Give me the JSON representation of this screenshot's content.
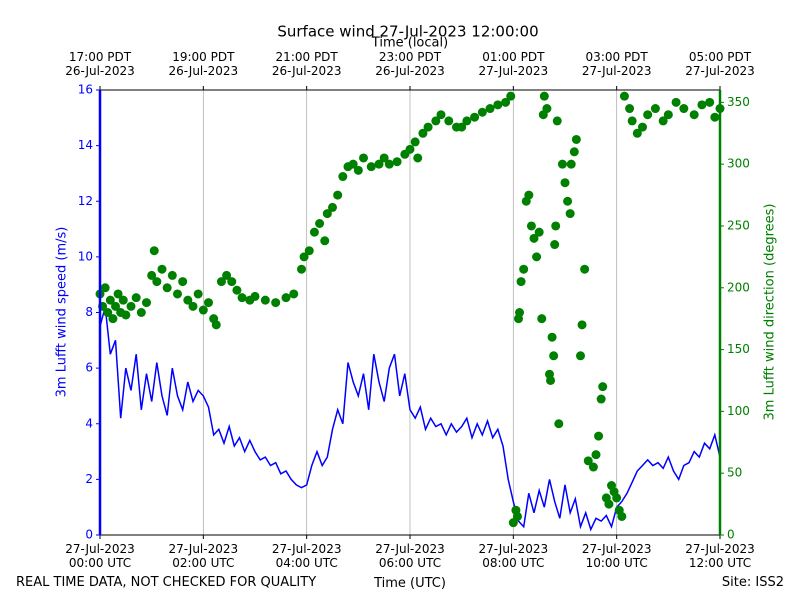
{
  "chart_data": {
    "type": "line",
    "title": "Surface wind 27-Jul-2023 12:00:00",
    "top_xlabel": "Time (local)",
    "xlabel": "Time (UTC)",
    "ylabel": "3m Lufft wind speed (m/s)",
    "y2label": "3m Lufft wind direction (degrees)",
    "footer_left": "REAL TIME DATA, NOT CHECKED FOR QUALITY",
    "footer_right": "Site: ISS2",
    "grid": true,
    "xlim": [
      0,
      12
    ],
    "xticks": [
      {
        "value": 0,
        "label": "27-Jul-2023\n00:00 UTC"
      },
      {
        "value": 2,
        "label": "27-Jul-2023\n02:00 UTC"
      },
      {
        "value": 4,
        "label": "27-Jul-2023\n04:00 UTC"
      },
      {
        "value": 6,
        "label": "27-Jul-2023\n06:00 UTC"
      },
      {
        "value": 8,
        "label": "27-Jul-2023\n08:00 UTC"
      },
      {
        "value": 10,
        "label": "27-Jul-2023\n10:00 UTC"
      },
      {
        "value": 12,
        "label": "27-Jul-2023\n12:00 UTC"
      }
    ],
    "top_xticks": [
      {
        "value": 0,
        "label": "17:00 PDT\n26-Jul-2023"
      },
      {
        "value": 2,
        "label": "19:00 PDT\n26-Jul-2023"
      },
      {
        "value": 4,
        "label": "21:00 PDT\n26-Jul-2023"
      },
      {
        "value": 6,
        "label": "23:00 PDT\n26-Jul-2023"
      },
      {
        "value": 8,
        "label": "01:00 PDT\n27-Jul-2023"
      },
      {
        "value": 10,
        "label": "03:00 PDT\n27-Jul-2023"
      },
      {
        "value": 12,
        "label": "05:00 PDT\n27-Jul-2023"
      }
    ],
    "ylim": [
      0,
      16
    ],
    "yticks": [
      0,
      2,
      4,
      6,
      8,
      10,
      12,
      14,
      16
    ],
    "y2lim": [
      0,
      360
    ],
    "y2ticks": [
      0,
      50,
      100,
      150,
      200,
      250,
      300,
      350
    ],
    "series": [
      {
        "type": "line",
        "axis": "y",
        "color": "#0000ff",
        "x": [
          0,
          0.1,
          0.2,
          0.3,
          0.4,
          0.5,
          0.6,
          0.7,
          0.8,
          0.9,
          1,
          1.1,
          1.2,
          1.3,
          1.4,
          1.5,
          1.6,
          1.7,
          1.8,
          1.9,
          2,
          2.1,
          2.2,
          2.3,
          2.4,
          2.5,
          2.6,
          2.7,
          2.8,
          2.9,
          3,
          3.1,
          3.2,
          3.3,
          3.4,
          3.5,
          3.6,
          3.7,
          3.8,
          3.9,
          4,
          4.1,
          4.2,
          4.3,
          4.4,
          4.5,
          4.6,
          4.7,
          4.8,
          4.9,
          5,
          5.1,
          5.2,
          5.3,
          5.4,
          5.5,
          5.6,
          5.7,
          5.8,
          5.9,
          6,
          6.1,
          6.2,
          6.3,
          6.4,
          6.5,
          6.6,
          6.7,
          6.8,
          6.9,
          7,
          7.1,
          7.2,
          7.3,
          7.4,
          7.5,
          7.6,
          7.7,
          7.8,
          7.9,
          8,
          8.1,
          8.2,
          8.3,
          8.4,
          8.5,
          8.6,
          8.7,
          8.8,
          8.9,
          9,
          9.1,
          9.2,
          9.3,
          9.4,
          9.5,
          9.6,
          9.7,
          9.8,
          9.9,
          10,
          10.1,
          10.2,
          10.3,
          10.4,
          10.5,
          10.6,
          10.7,
          10.8,
          10.9,
          11,
          11.1,
          11.2,
          11.3,
          11.4,
          11.5,
          11.6,
          11.7,
          11.8,
          11.9,
          12
        ],
        "values": [
          7.5,
          8.2,
          6.5,
          7.0,
          4.2,
          6.0,
          5.2,
          6.5,
          4.5,
          5.8,
          4.8,
          6.2,
          5.0,
          4.3,
          6.0,
          5.0,
          4.5,
          5.5,
          4.8,
          5.2,
          5.0,
          4.6,
          3.6,
          3.8,
          3.3,
          3.9,
          3.2,
          3.5,
          3.0,
          3.4,
          3.0,
          2.7,
          2.8,
          2.5,
          2.6,
          2.2,
          2.3,
          2.0,
          1.8,
          1.7,
          1.8,
          2.5,
          3.0,
          2.5,
          2.8,
          3.8,
          4.5,
          4.0,
          6.2,
          5.5,
          5.0,
          5.8,
          4.5,
          6.5,
          5.5,
          4.8,
          6.0,
          6.5,
          5.0,
          5.8,
          4.5,
          4.2,
          4.6,
          3.8,
          4.2,
          3.9,
          4.0,
          3.6,
          4.0,
          3.7,
          3.9,
          4.2,
          3.5,
          4.0,
          3.6,
          4.1,
          3.5,
          3.8,
          3.2,
          2.0,
          1.2,
          0.5,
          0.3,
          1.5,
          0.8,
          1.6,
          1.0,
          2.0,
          1.2,
          0.6,
          1.8,
          0.8,
          1.3,
          0.3,
          0.8,
          0.2,
          0.6,
          0.5,
          0.7,
          0.3,
          1.0,
          1.2,
          1.5,
          1.9,
          2.3,
          2.5,
          2.7,
          2.5,
          2.6,
          2.4,
          2.8,
          2.3,
          2.0,
          2.5,
          2.6,
          3.0,
          2.8,
          3.3,
          3.1,
          3.6,
          2.8
        ]
      },
      {
        "type": "scatter",
        "axis": "y2",
        "color": "#008000",
        "x": [
          0,
          0.05,
          0.1,
          0.15,
          0.2,
          0.25,
          0.3,
          0.35,
          0.4,
          0.45,
          0.5,
          0.6,
          0.7,
          0.8,
          0.9,
          1.0,
          1.05,
          1.1,
          1.2,
          1.3,
          1.4,
          1.5,
          1.6,
          1.7,
          1.8,
          1.9,
          2.0,
          2.1,
          2.2,
          2.25,
          2.35,
          2.45,
          2.55,
          2.65,
          2.75,
          2.9,
          3.0,
          3.2,
          3.4,
          3.6,
          3.75,
          3.9,
          3.95,
          4.05,
          4.15,
          4.25,
          4.35,
          4.4,
          4.5,
          4.6,
          4.7,
          4.8,
          4.9,
          5.0,
          5.1,
          5.25,
          5.4,
          5.5,
          5.6,
          5.75,
          5.9,
          6.0,
          6.1,
          6.15,
          6.25,
          6.35,
          6.5,
          6.6,
          6.75,
          6.9,
          7.0,
          7.1,
          7.25,
          7.4,
          7.55,
          7.7,
          7.85,
          7.95,
          8.0,
          8.05,
          8.08,
          8.1,
          8.12,
          8.15,
          8.2,
          8.25,
          8.3,
          8.35,
          8.4,
          8.45,
          8.5,
          8.55,
          8.58,
          8.6,
          8.65,
          8.7,
          8.72,
          8.75,
          8.78,
          8.8,
          8.82,
          8.85,
          8.88,
          8.95,
          9.0,
          9.05,
          9.1,
          9.12,
          9.18,
          9.22,
          9.3,
          9.33,
          9.38,
          9.45,
          9.55,
          9.6,
          9.65,
          9.7,
          9.73,
          9.8,
          9.85,
          9.9,
          9.95,
          10.0,
          10.05,
          10.1,
          10.15,
          10.25,
          10.3,
          10.4,
          10.5,
          10.6,
          10.75,
          10.9,
          11.0,
          11.15,
          11.3,
          11.5,
          11.65,
          11.8,
          11.9,
          12.0
        ],
        "values": [
          195,
          185,
          200,
          180,
          190,
          175,
          185,
          195,
          180,
          190,
          178,
          185,
          192,
          180,
          188,
          210,
          230,
          205,
          215,
          200,
          210,
          195,
          205,
          190,
          185,
          195,
          182,
          188,
          175,
          170,
          205,
          210,
          205,
          198,
          192,
          190,
          193,
          190,
          188,
          192,
          195,
          215,
          225,
          230,
          245,
          252,
          238,
          260,
          265,
          275,
          290,
          298,
          300,
          295,
          305,
          298,
          300,
          305,
          300,
          302,
          308,
          312,
          318,
          305,
          325,
          330,
          335,
          340,
          335,
          330,
          330,
          335,
          338,
          342,
          345,
          348,
          350,
          355,
          10,
          20,
          15,
          175,
          180,
          205,
          215,
          270,
          275,
          250,
          240,
          225,
          245,
          175,
          340,
          355,
          345,
          130,
          125,
          160,
          145,
          235,
          250,
          335,
          90,
          300,
          285,
          270,
          260,
          300,
          310,
          320,
          145,
          170,
          215,
          60,
          55,
          65,
          80,
          110,
          120,
          30,
          25,
          40,
          35,
          30,
          20,
          15,
          355,
          345,
          335,
          325,
          330,
          340,
          345,
          335,
          340,
          350,
          345,
          340,
          348,
          350,
          338,
          345
        ]
      }
    ]
  }
}
